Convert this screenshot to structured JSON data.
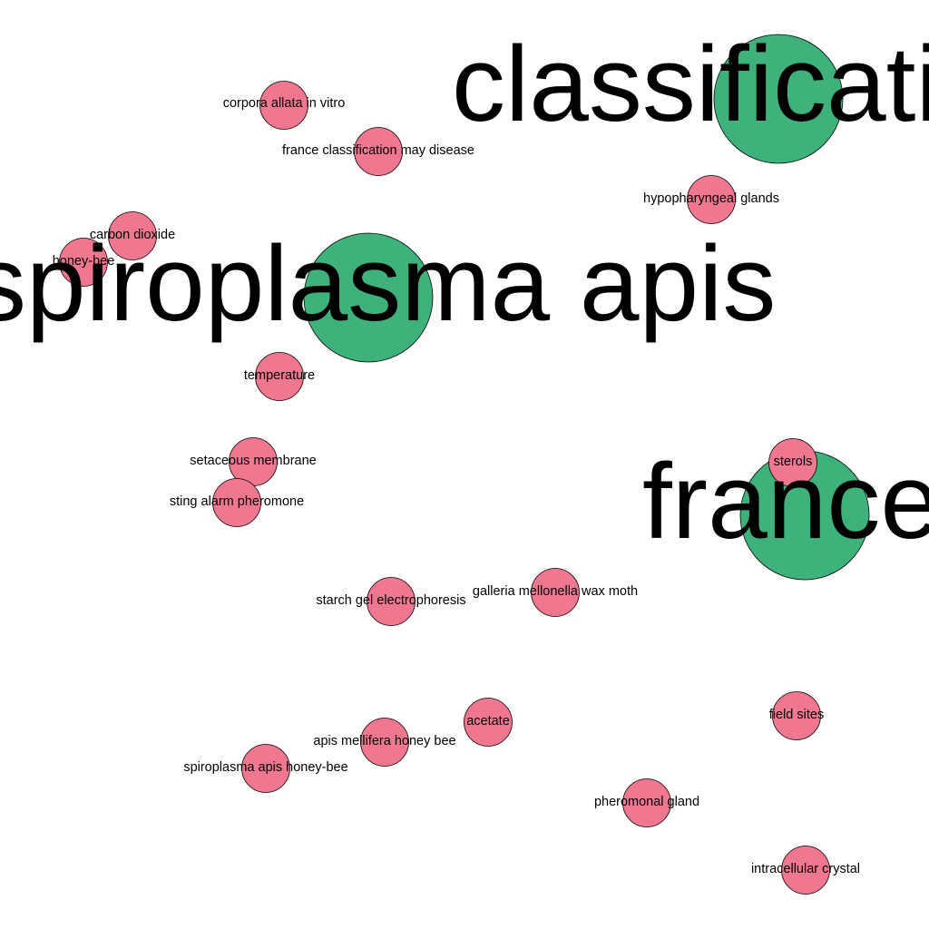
{
  "colors": {
    "major": "#3fb27c",
    "minor": "#ef7890",
    "outline": "#000000",
    "label": "#000000",
    "background": "#ffffff"
  },
  "major_nodes": [
    {
      "id": "classification",
      "label": "classification"
    },
    {
      "id": "spiroplasma-apis",
      "label": "spiroplasma apis"
    },
    {
      "id": "france",
      "label": "france"
    }
  ],
  "minor_nodes": [
    {
      "id": "corpora-allata-in-vitro",
      "label": "corpora allata in vitro"
    },
    {
      "id": "france-classification-may-disease",
      "label": "france classification may disease"
    },
    {
      "id": "hypopharyngeal-glands",
      "label": "hypopharyngeal glands"
    },
    {
      "id": "carbon-dioxide",
      "label": "carbon dioxide"
    },
    {
      "id": "honey-bee",
      "label": "honey-bee"
    },
    {
      "id": "temperature",
      "label": "temperature"
    },
    {
      "id": "setaceous-membrane",
      "label": "setaceous membrane"
    },
    {
      "id": "sting-alarm-pheromone",
      "label": "sting alarm pheromone"
    },
    {
      "id": "sterols",
      "label": "sterols"
    },
    {
      "id": "starch-gel-electrophoresis",
      "label": "starch gel electrophoresis"
    },
    {
      "id": "galleria-mellonella-wax-moth",
      "label": "galleria mellonella wax moth"
    },
    {
      "id": "acetate",
      "label": "acetate"
    },
    {
      "id": "apis-mellifera-honey-bee",
      "label": "apis mellifera honey bee"
    },
    {
      "id": "field-sites",
      "label": "field sites"
    },
    {
      "id": "spiroplasma-apis-honey-bee",
      "label": "spiroplasma apis honey-bee"
    },
    {
      "id": "pheromonal-gland",
      "label": "pheromonal gland"
    },
    {
      "id": "intracellular-crystal",
      "label": "intracellular crystal"
    }
  ]
}
